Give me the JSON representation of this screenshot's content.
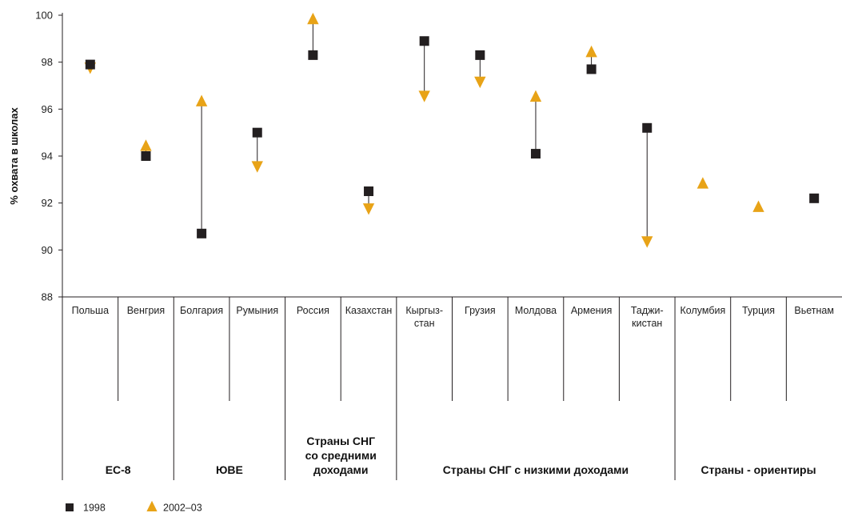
{
  "chart_data": {
    "type": "scatter",
    "ylabel": "% охвата в школах",
    "ylim": [
      88,
      100
    ],
    "yticks": [
      88,
      90,
      92,
      94,
      96,
      98,
      100
    ],
    "grid": false,
    "legend_position": "bottom-left",
    "categories": [
      [
        "Польша"
      ],
      [
        "Венгрия"
      ],
      [
        "Болгария"
      ],
      [
        "Румыния"
      ],
      [
        "Россия"
      ],
      [
        "Казахстан"
      ],
      [
        "Кыргыз-",
        "стан"
      ],
      [
        "Грузия"
      ],
      [
        "Молдова"
      ],
      [
        "Армения"
      ],
      [
        "Таджи-",
        "кистан"
      ],
      [
        "Колумбия"
      ],
      [
        "Турция"
      ],
      [
        "Вьетнам"
      ]
    ],
    "groups": [
      {
        "label": [
          "ЕС-8"
        ],
        "from": 0,
        "to": 1
      },
      {
        "label": [
          "ЮВЕ"
        ],
        "from": 2,
        "to": 3
      },
      {
        "label": [
          "Страны СНГ",
          "со средними",
          "доходами"
        ],
        "from": 4,
        "to": 5
      },
      {
        "label": [
          "Страны СНГ с низкими доходами"
        ],
        "from": 6,
        "to": 10
      },
      {
        "label": [
          "Страны - ориентиры"
        ],
        "from": 11,
        "to": 13
      }
    ],
    "series": [
      {
        "name": "1998",
        "marker": "square",
        "color": "#231f20",
        "values": [
          97.9,
          94.0,
          90.7,
          95.0,
          98.3,
          92.5,
          98.9,
          98.3,
          94.1,
          97.7,
          95.2,
          null,
          null,
          92.2
        ]
      },
      {
        "name": "2002–03",
        "marker": "triangle",
        "color": "#e8a317",
        "values": [
          97.8,
          94.4,
          96.3,
          93.6,
          99.8,
          91.8,
          96.6,
          97.2,
          96.5,
          98.4,
          90.4,
          92.8,
          91.8,
          null
        ]
      }
    ]
  }
}
